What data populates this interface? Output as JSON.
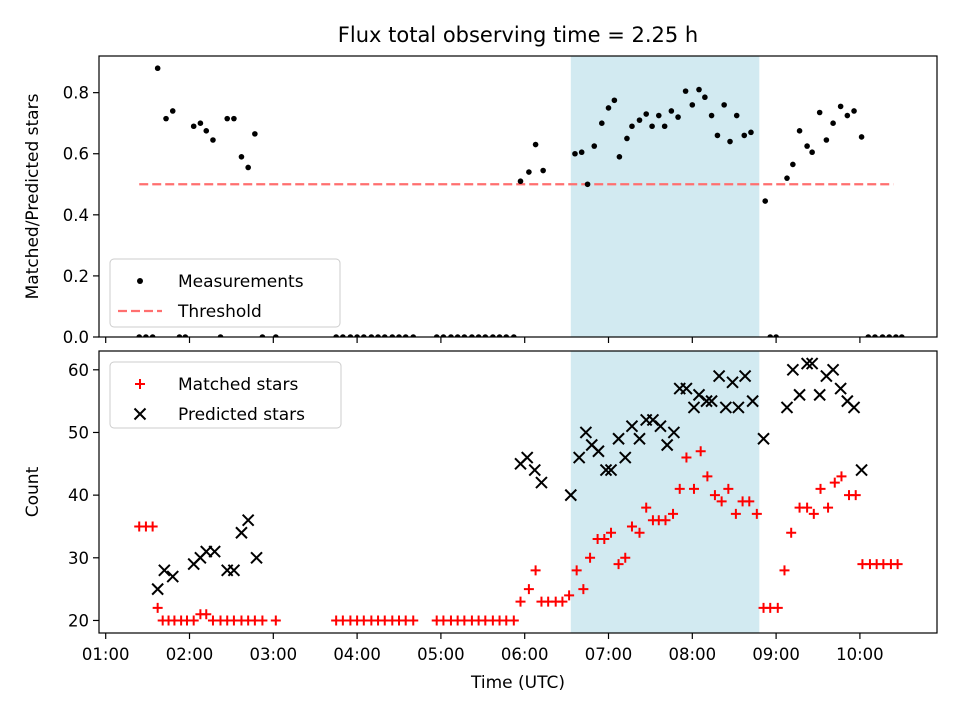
{
  "chart_data": [
    {
      "type": "scatter",
      "title": "Flux total observing time = 2.25 h",
      "xlabel": "",
      "ylabel": "Matched/Predicted stars",
      "xlim": [
        0.92,
        10.92
      ],
      "ylim": [
        0,
        0.92
      ],
      "yticks": [
        0.0,
        0.2,
        0.4,
        0.6,
        0.8
      ],
      "grid": false,
      "legend_position": "lower-left",
      "highlight_band": {
        "x_start": 6.55,
        "x_end": 8.8,
        "color": "#add8e6"
      },
      "threshold": {
        "name": "Threshold",
        "value": 0.5,
        "x_start": 1.4,
        "x_end": 10.4,
        "color": "#ff6f6f"
      },
      "series": [
        {
          "name": "Measurements",
          "color": "#000000",
          "marker": "dot",
          "points": [
            [
              1.4,
              0
            ],
            [
              1.48,
              0
            ],
            [
              1.56,
              0
            ],
            [
              1.62,
              0.88
            ],
            [
              1.72,
              0.715
            ],
            [
              1.8,
              0.74
            ],
            [
              1.88,
              0
            ],
            [
              1.95,
              0
            ],
            [
              2.05,
              0.69
            ],
            [
              2.13,
              0.7
            ],
            [
              2.2,
              0.675
            ],
            [
              2.28,
              0.645
            ],
            [
              2.37,
              0
            ],
            [
              2.45,
              0.715
            ],
            [
              2.53,
              0.715
            ],
            [
              2.62,
              0.59
            ],
            [
              2.7,
              0.555
            ],
            [
              2.78,
              0.665
            ],
            [
              2.87,
              0
            ],
            [
              3.03,
              0
            ],
            [
              3.75,
              0
            ],
            [
              3.83,
              0
            ],
            [
              3.92,
              0
            ],
            [
              4.0,
              0
            ],
            [
              4.08,
              0
            ],
            [
              4.17,
              0
            ],
            [
              4.25,
              0
            ],
            [
              4.33,
              0
            ],
            [
              4.42,
              0
            ],
            [
              4.5,
              0
            ],
            [
              4.58,
              0
            ],
            [
              4.67,
              0
            ],
            [
              4.95,
              0
            ],
            [
              5.03,
              0
            ],
            [
              5.12,
              0
            ],
            [
              5.2,
              0
            ],
            [
              5.28,
              0
            ],
            [
              5.37,
              0
            ],
            [
              5.45,
              0
            ],
            [
              5.53,
              0
            ],
            [
              5.62,
              0
            ],
            [
              5.7,
              0
            ],
            [
              5.78,
              0
            ],
            [
              5.87,
              0
            ],
            [
              5.95,
              0.51
            ],
            [
              6.05,
              0.54
            ],
            [
              6.13,
              0.63
            ],
            [
              6.22,
              0.545
            ],
            [
              6.6,
              0.6
            ],
            [
              6.68,
              0.605
            ],
            [
              6.75,
              0.5
            ],
            [
              6.83,
              0.625
            ],
            [
              6.92,
              0.7
            ],
            [
              7.0,
              0.75
            ],
            [
              7.07,
              0.775
            ],
            [
              7.13,
              0.59
            ],
            [
              7.22,
              0.65
            ],
            [
              7.28,
              0.69
            ],
            [
              7.37,
              0.71
            ],
            [
              7.45,
              0.73
            ],
            [
              7.52,
              0.69
            ],
            [
              7.6,
              0.725
            ],
            [
              7.67,
              0.69
            ],
            [
              7.75,
              0.74
            ],
            [
              7.83,
              0.72
            ],
            [
              7.92,
              0.805
            ],
            [
              8.0,
              0.76
            ],
            [
              8.08,
              0.81
            ],
            [
              8.15,
              0.785
            ],
            [
              8.23,
              0.725
            ],
            [
              8.3,
              0.66
            ],
            [
              8.38,
              0.76
            ],
            [
              8.45,
              0.64
            ],
            [
              8.53,
              0.725
            ],
            [
              8.62,
              0.66
            ],
            [
              8.7,
              0.67
            ],
            [
              8.87,
              0.445
            ],
            [
              8.93,
              0
            ],
            [
              9.0,
              0
            ],
            [
              9.13,
              0.52
            ],
            [
              9.2,
              0.565
            ],
            [
              9.28,
              0.675
            ],
            [
              9.37,
              0.625
            ],
            [
              9.43,
              0.605
            ],
            [
              9.52,
              0.735
            ],
            [
              9.6,
              0.645
            ],
            [
              9.68,
              0.7
            ],
            [
              9.77,
              0.755
            ],
            [
              9.85,
              0.725
            ],
            [
              9.93,
              0.74
            ],
            [
              10.02,
              0.655
            ],
            [
              10.1,
              0
            ],
            [
              10.18,
              0
            ],
            [
              10.27,
              0
            ],
            [
              10.35,
              0
            ],
            [
              10.43,
              0
            ],
            [
              10.5,
              0
            ]
          ]
        }
      ]
    },
    {
      "type": "scatter",
      "title": "",
      "xlabel": "Time (UTC)",
      "ylabel": "Count",
      "xlim": [
        0.92,
        10.92
      ],
      "ylim": [
        18,
        63
      ],
      "yticks": [
        20,
        30,
        40,
        50,
        60
      ],
      "xticks": [
        1,
        2,
        3,
        4,
        5,
        6,
        7,
        8,
        9,
        10
      ],
      "xtick_labels": [
        "01:00",
        "02:00",
        "03:00",
        "04:00",
        "05:00",
        "06:00",
        "07:00",
        "08:00",
        "09:00",
        "10:00"
      ],
      "grid": false,
      "legend_position": "top-left",
      "highlight_band": {
        "x_start": 6.55,
        "x_end": 8.8,
        "color": "#add8e6"
      },
      "series": [
        {
          "name": "Matched stars",
          "color": "#ff0000",
          "marker": "plus",
          "points": [
            [
              1.4,
              35
            ],
            [
              1.48,
              35
            ],
            [
              1.56,
              35
            ],
            [
              1.62,
              22
            ],
            [
              1.68,
              20
            ],
            [
              1.75,
              20
            ],
            [
              1.82,
              20
            ],
            [
              1.9,
              20
            ],
            [
              1.97,
              20
            ],
            [
              2.05,
              20
            ],
            [
              2.13,
              21
            ],
            [
              2.2,
              21
            ],
            [
              2.28,
              20
            ],
            [
              2.37,
              20
            ],
            [
              2.45,
              20
            ],
            [
              2.53,
              20
            ],
            [
              2.62,
              20
            ],
            [
              2.7,
              20
            ],
            [
              2.78,
              20
            ],
            [
              2.87,
              20
            ],
            [
              3.03,
              20
            ],
            [
              3.75,
              20
            ],
            [
              3.83,
              20
            ],
            [
              3.92,
              20
            ],
            [
              4.0,
              20
            ],
            [
              4.08,
              20
            ],
            [
              4.17,
              20
            ],
            [
              4.25,
              20
            ],
            [
              4.33,
              20
            ],
            [
              4.42,
              20
            ],
            [
              4.5,
              20
            ],
            [
              4.58,
              20
            ],
            [
              4.67,
              20
            ],
            [
              4.95,
              20
            ],
            [
              5.03,
              20
            ],
            [
              5.12,
              20
            ],
            [
              5.2,
              20
            ],
            [
              5.28,
              20
            ],
            [
              5.37,
              20
            ],
            [
              5.45,
              20
            ],
            [
              5.53,
              20
            ],
            [
              5.62,
              20
            ],
            [
              5.7,
              20
            ],
            [
              5.78,
              20
            ],
            [
              5.87,
              20
            ],
            [
              5.95,
              23
            ],
            [
              6.05,
              25
            ],
            [
              6.13,
              28
            ],
            [
              6.2,
              23
            ],
            [
              6.28,
              23
            ],
            [
              6.37,
              23
            ],
            [
              6.45,
              23
            ],
            [
              6.53,
              24
            ],
            [
              6.62,
              28
            ],
            [
              6.7,
              25
            ],
            [
              6.78,
              30
            ],
            [
              6.87,
              33
            ],
            [
              6.95,
              33
            ],
            [
              7.03,
              34
            ],
            [
              7.12,
              29
            ],
            [
              7.2,
              30
            ],
            [
              7.28,
              35
            ],
            [
              7.37,
              34
            ],
            [
              7.45,
              38
            ],
            [
              7.53,
              36
            ],
            [
              7.6,
              36
            ],
            [
              7.68,
              36
            ],
            [
              7.77,
              37
            ],
            [
              7.85,
              41
            ],
            [
              7.93,
              46
            ],
            [
              8.02,
              41
            ],
            [
              8.1,
              47
            ],
            [
              8.18,
              43
            ],
            [
              8.27,
              40
            ],
            [
              8.35,
              39
            ],
            [
              8.43,
              41
            ],
            [
              8.52,
              37
            ],
            [
              8.6,
              39
            ],
            [
              8.68,
              39
            ],
            [
              8.77,
              37
            ],
            [
              8.85,
              22
            ],
            [
              8.93,
              22
            ],
            [
              9.02,
              22
            ],
            [
              9.1,
              28
            ],
            [
              9.18,
              34
            ],
            [
              9.28,
              38
            ],
            [
              9.37,
              38
            ],
            [
              9.45,
              37
            ],
            [
              9.53,
              41
            ],
            [
              9.62,
              38
            ],
            [
              9.7,
              42
            ],
            [
              9.78,
              43
            ],
            [
              9.87,
              40
            ],
            [
              9.95,
              40
            ],
            [
              10.03,
              29
            ],
            [
              10.12,
              29
            ],
            [
              10.2,
              29
            ],
            [
              10.28,
              29
            ],
            [
              10.37,
              29
            ],
            [
              10.45,
              29
            ]
          ]
        },
        {
          "name": "Predicted stars",
          "color": "#000000",
          "marker": "x",
          "points": [
            [
              1.62,
              25
            ],
            [
              1.7,
              28
            ],
            [
              1.8,
              27
            ],
            [
              2.05,
              29
            ],
            [
              2.13,
              30
            ],
            [
              2.2,
              31
            ],
            [
              2.3,
              31
            ],
            [
              2.45,
              28
            ],
            [
              2.53,
              28
            ],
            [
              2.62,
              34
            ],
            [
              2.7,
              36
            ],
            [
              2.8,
              30
            ],
            [
              5.95,
              45
            ],
            [
              6.03,
              46
            ],
            [
              6.12,
              44
            ],
            [
              6.2,
              42
            ],
            [
              6.55,
              40
            ],
            [
              6.65,
              46
            ],
            [
              6.73,
              50
            ],
            [
              6.8,
              48
            ],
            [
              6.88,
              47
            ],
            [
              6.97,
              44
            ],
            [
              7.03,
              44
            ],
            [
              7.12,
              49
            ],
            [
              7.2,
              46
            ],
            [
              7.28,
              51
            ],
            [
              7.37,
              49
            ],
            [
              7.45,
              52
            ],
            [
              7.53,
              52
            ],
            [
              7.62,
              51
            ],
            [
              7.7,
              48
            ],
            [
              7.78,
              50
            ],
            [
              7.85,
              57
            ],
            [
              7.93,
              57
            ],
            [
              8.02,
              54
            ],
            [
              8.08,
              56
            ],
            [
              8.17,
              55
            ],
            [
              8.23,
              55
            ],
            [
              8.32,
              59
            ],
            [
              8.4,
              54
            ],
            [
              8.48,
              58
            ],
            [
              8.55,
              54
            ],
            [
              8.63,
              59
            ],
            [
              8.72,
              55
            ],
            [
              8.85,
              49
            ],
            [
              9.13,
              54
            ],
            [
              9.2,
              60
            ],
            [
              9.28,
              56
            ],
            [
              9.37,
              61
            ],
            [
              9.43,
              61
            ],
            [
              9.52,
              56
            ],
            [
              9.6,
              59
            ],
            [
              9.68,
              60
            ],
            [
              9.77,
              57
            ],
            [
              9.85,
              55
            ],
            [
              9.93,
              54
            ],
            [
              10.02,
              44
            ]
          ]
        }
      ]
    }
  ]
}
